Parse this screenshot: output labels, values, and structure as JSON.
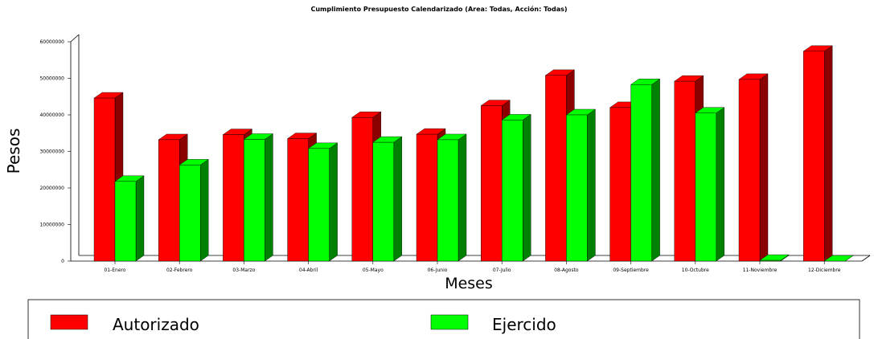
{
  "chart_data": {
    "type": "bar",
    "title": "Cumplimiento Presupuesto Calendarizado (Area: Todas, Acción: Todas)",
    "xlabel": "Meses",
    "ylabel": "Pesos",
    "ylim": [
      0,
      60000000
    ],
    "yticks": [
      "0",
      "10000000",
      "20000000",
      "30000000",
      "40000000",
      "50000000",
      "60000000"
    ],
    "categories": [
      "01-Enero",
      "02-Febrero",
      "03-Marzo",
      "04-Abril",
      "05-Mayo",
      "06-Junio",
      "07-Julio",
      "08-Agosto",
      "09-Septiembre",
      "10-Octubre",
      "11-Noviembre",
      "12-Diciembre"
    ],
    "series": [
      {
        "name": "Autorizado",
        "color": "#ff0000",
        "side": "#8b0000",
        "values": [
          44600000,
          33200000,
          34600000,
          33500000,
          39300000,
          34700000,
          42500000,
          50800000,
          42000000,
          49200000,
          49700000,
          57400000
        ]
      },
      {
        "name": "Ejercido",
        "color": "#00ff00",
        "side": "#008000",
        "values": [
          21800000,
          26300000,
          33300000,
          30800000,
          32500000,
          33200000,
          38600000,
          40000000,
          48300000,
          40500000,
          200000,
          0
        ]
      }
    ],
    "grid": false,
    "legend": "bottom"
  }
}
